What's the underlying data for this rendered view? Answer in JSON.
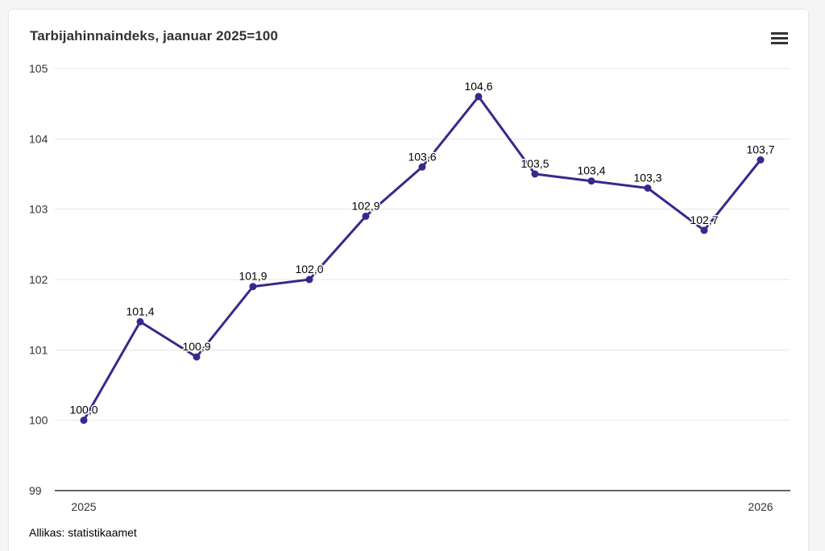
{
  "page": {
    "background_color": "#f5f5f5",
    "card_background_color": "#ffffff"
  },
  "card": {
    "title": "Tarbijahinnaindeks, jaanuar 2025=100",
    "source": "Allikas: statistikaamet"
  },
  "icons": {
    "menu": "hamburger-menu-icon"
  },
  "chart_data": {
    "type": "line",
    "title": "Tarbijahinnaindeks, jaanuar 2025=100",
    "series": [
      {
        "values": [
          100.0,
          101.4,
          100.9,
          101.9,
          102.0,
          102.9,
          103.6,
          104.6,
          103.5,
          103.4,
          103.3,
          102.7,
          103.7
        ]
      }
    ],
    "point_labels": [
      "100,0",
      "101,4",
      "100,9",
      "101,9",
      "102,0",
      "102,9",
      "103,6",
      "104,6",
      "103,5",
      "103,4",
      "103,3",
      "102,7",
      "103,7"
    ],
    "num_points": 13,
    "y_ticks": [
      99,
      100,
      101,
      102,
      103,
      104,
      105
    ],
    "ylim": [
      99,
      105
    ],
    "x_tick_labels": [
      {
        "label": "2025",
        "point_index": 0
      },
      {
        "label": "2026",
        "point_index": 12
      }
    ],
    "grid": "horizontal",
    "legend_position": "none",
    "line_color": "#352a8c",
    "marker_color": "#352a8c",
    "grid_color": "#e6e6e6",
    "axis_line_color": "#333333",
    "tick_label_color": "#333333",
    "data_label_color": "#000000"
  }
}
